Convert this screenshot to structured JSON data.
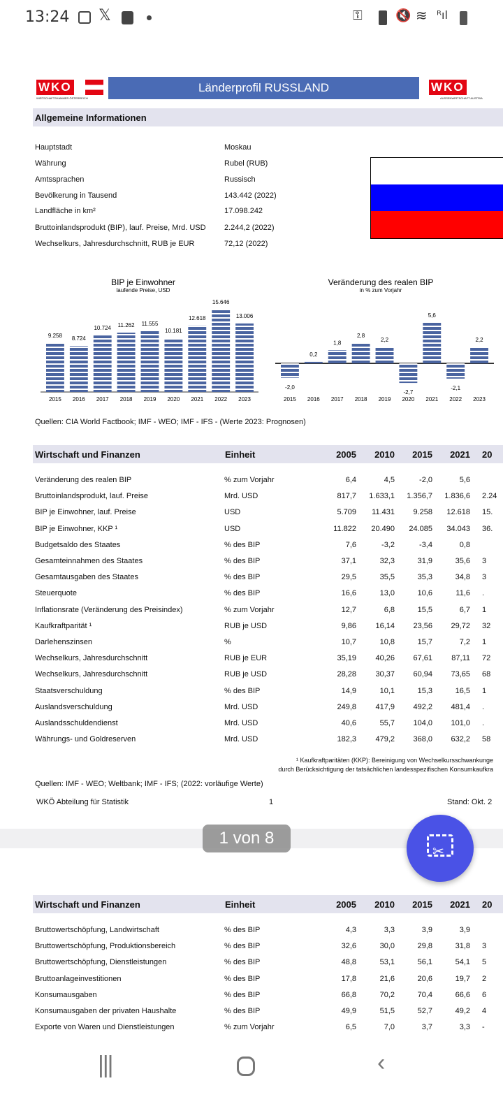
{
  "status_bar": {
    "time": "13:24",
    "left_icons": [
      "gallery-icon",
      "x-icon",
      "clock-app-icon",
      "dot-icon"
    ],
    "right_icons": [
      "vpn-key-icon",
      "battery-saver-icon",
      "mute-vibrate-icon",
      "wifi-icon",
      "roaming-signal-icon",
      "battery-icon"
    ]
  },
  "header": {
    "logo_left": "WKO",
    "logo_left_sub": "WIRTSCHAFTSKAMMER ÖSTERREICH",
    "title": "Länderprofil RUSSLAND",
    "logo_right": "WKO",
    "logo_right_sub": "AUSSENWIRTSCHAFT AUSTRIA"
  },
  "general": {
    "heading": "Allgemeine Informationen",
    "rows": [
      [
        "Hauptstadt",
        "Moskau"
      ],
      [
        "Währung",
        "Rubel (RUB)"
      ],
      [
        "Amtssprachen",
        "Russisch"
      ],
      [
        "Bevölkerung in Tausend",
        "143.442 (2022)"
      ],
      [
        "Landfläche in km²",
        "17.098.242"
      ],
      [
        "Bruttoinlandsprodukt (BIP), lauf. Preise, Mrd. USD",
        "2.244,2 (2022)"
      ],
      [
        "Wechselkurs, Jahresdurchschnitt, RUB je EUR",
        "72,12 (2022)"
      ]
    ],
    "flag_colors": [
      "#ffffff",
      "#0000ff",
      "#ff0000"
    ]
  },
  "chart_data": [
    {
      "type": "bar",
      "title": "BIP je Einwohner",
      "subtitle": "laufende Preise, USD",
      "categories": [
        "2015",
        "2016",
        "2017",
        "2018",
        "2019",
        "2020",
        "2021",
        "2022",
        "2023"
      ],
      "values": [
        9258,
        8724,
        10724,
        11262,
        11555,
        10181,
        12618,
        15646,
        13006
      ],
      "labels": [
        "9.258",
        "8.724",
        "10.724",
        "11.262",
        "11.555",
        "10.181",
        "12.618",
        "15.646",
        "13.006"
      ],
      "color": "#4a64a0"
    },
    {
      "type": "bar",
      "title": "Veränderung des realen BIP",
      "subtitle": "in % zum Vorjahr",
      "categories": [
        "2015",
        "2016",
        "2017",
        "2018",
        "2019",
        "2020",
        "2021",
        "2022",
        "2023"
      ],
      "values": [
        -2.0,
        0.2,
        1.8,
        2.8,
        2.2,
        -2.7,
        5.6,
        -2.1,
        2.2
      ],
      "labels": [
        "-2,0",
        "0,2",
        "1,8",
        "2,8",
        "2,2",
        "-2,7",
        "5,6",
        "-2,1",
        "2,2"
      ],
      "color": "#4a64a0"
    }
  ],
  "chart_sources": "Quellen: CIA World Factbook; IMF - WEO; IMF - IFS - (Werte 2023: Prognosen)",
  "table1": {
    "heading": "Wirtschaft und Finanzen",
    "unit_header": "Einheit",
    "years": [
      "2005",
      "2010",
      "2015",
      "2021",
      "20"
    ],
    "rows": [
      {
        "label": "Veränderung des realen BIP",
        "unit": "% zum Vorjahr",
        "v": [
          "6,4",
          "4,5",
          "-2,0",
          "5,6",
          ""
        ]
      },
      {
        "label": "Bruttoinlandsprodukt, lauf. Preise",
        "unit": "Mrd. USD",
        "v": [
          "817,7",
          "1.633,1",
          "1.356,7",
          "1.836,6",
          "2.24"
        ]
      },
      {
        "label": "BIP je Einwohner, lauf. Preise",
        "unit": "USD",
        "v": [
          "5.709",
          "11.431",
          "9.258",
          "12.618",
          "15."
        ]
      },
      {
        "label": "BIP je Einwohner, KKP ¹",
        "unit": "USD",
        "v": [
          "11.822",
          "20.490",
          "24.085",
          "34.043",
          "36."
        ]
      },
      {
        "label": "Budgetsaldo des Staates",
        "unit": "% des BIP",
        "v": [
          "7,6",
          "-3,2",
          "-3,4",
          "0,8",
          ""
        ]
      },
      {
        "label": "Gesamteinnahmen des Staates",
        "unit": "% des BIP",
        "v": [
          "37,1",
          "32,3",
          "31,9",
          "35,6",
          "3"
        ]
      },
      {
        "label": "Gesamtausgaben des Staates",
        "unit": "% des BIP",
        "v": [
          "29,5",
          "35,5",
          "35,3",
          "34,8",
          "3"
        ]
      },
      {
        "label": "Steuerquote",
        "unit": "% des BIP",
        "v": [
          "16,6",
          "13,0",
          "10,6",
          "11,6",
          "."
        ]
      },
      {
        "label": "Inflationsrate (Veränderung des Preisindex)",
        "unit": "% zum Vorjahr",
        "v": [
          "12,7",
          "6,8",
          "15,5",
          "6,7",
          "1"
        ]
      },
      {
        "label": "Kaufkraftparität ¹",
        "unit": "RUB je USD",
        "v": [
          "9,86",
          "16,14",
          "23,56",
          "29,72",
          "32"
        ]
      },
      {
        "label": "Darlehenszinsen",
        "unit": "%",
        "v": [
          "10,7",
          "10,8",
          "15,7",
          "7,2",
          "1"
        ]
      },
      {
        "label": "Wechselkurs, Jahresdurchschnitt",
        "unit": "RUB je EUR",
        "v": [
          "35,19",
          "40,26",
          "67,61",
          "87,11",
          "72"
        ]
      },
      {
        "label": "Wechselkurs, Jahresdurchschnitt",
        "unit": "RUB je USD",
        "v": [
          "28,28",
          "30,37",
          "60,94",
          "73,65",
          "68"
        ]
      },
      {
        "label": "Staatsverschuldung",
        "unit": "% des BIP",
        "v": [
          "14,9",
          "10,1",
          "15,3",
          "16,5",
          "1"
        ]
      },
      {
        "label": "Auslandsverschuldung",
        "unit": "Mrd. USD",
        "v": [
          "249,8",
          "417,9",
          "492,2",
          "481,4",
          "."
        ]
      },
      {
        "label": "Auslandsschuldendienst",
        "unit": "Mrd. USD",
        "v": [
          "40,6",
          "55,7",
          "104,0",
          "101,0",
          "."
        ]
      },
      {
        "label": "Währungs- und Goldreserven",
        "unit": "Mrd. USD",
        "v": [
          "182,3",
          "479,2",
          "368,0",
          "632,2",
          "58"
        ]
      }
    ],
    "footnote1": "¹ Kaufkraftparitäten (KKP): Bereinigung von Wechselkursschwankunge",
    "footnote2": "durch Berücksichtigung der tatsächlichen landesspezifischen Konsumkaufkra",
    "sources": "Quellen: IMF - WEO; Weltbank; IMF - IFS; (2022: vorläufige Werte)",
    "footer_left": "WKÖ Abteilung für Statistik",
    "footer_page": "1",
    "footer_right": "Stand: Okt. 2"
  },
  "table2": {
    "heading": "Wirtschaft und Finanzen",
    "unit_header": "Einheit",
    "years": [
      "2005",
      "2010",
      "2015",
      "2021",
      "20"
    ],
    "rows": [
      {
        "label": "Bruttowertschöpfung, Landwirtschaft",
        "unit": "% des BIP",
        "v": [
          "4,3",
          "3,3",
          "3,9",
          "3,9",
          ""
        ]
      },
      {
        "label": "Bruttowertschöpfung, Produktionsbereich",
        "unit": "% des BIP",
        "v": [
          "32,6",
          "30,0",
          "29,8",
          "31,8",
          "3"
        ]
      },
      {
        "label": "Bruttowertschöpfung, Dienstleistungen",
        "unit": "% des BIP",
        "v": [
          "48,8",
          "53,1",
          "56,1",
          "54,1",
          "5"
        ]
      },
      {
        "label": "Bruttoanlageinvestitionen",
        "unit": "% des BIP",
        "v": [
          "17,8",
          "21,6",
          "20,6",
          "19,7",
          "2"
        ]
      },
      {
        "label": "Konsumausgaben",
        "unit": "% des BIP",
        "v": [
          "66,8",
          "70,2",
          "70,4",
          "66,6",
          "6"
        ]
      },
      {
        "label": "Konsumausgaben der privaten Haushalte",
        "unit": "% des BIP",
        "v": [
          "49,9",
          "51,5",
          "52,7",
          "49,2",
          "4"
        ]
      },
      {
        "label": "Exporte von Waren und Dienstleistungen",
        "unit": "% zum Vorjahr",
        "v": [
          "6,5",
          "7,0",
          "3,7",
          "3,3",
          "-"
        ]
      }
    ]
  },
  "viewer": {
    "page_indicator": "1 von 8",
    "fab_icon": "screenshot-crop-icon",
    "fab_color": "#4a52e6"
  },
  "nav_bar": {
    "recents": "recents-icon",
    "home": "home-icon",
    "back": "back-icon"
  }
}
